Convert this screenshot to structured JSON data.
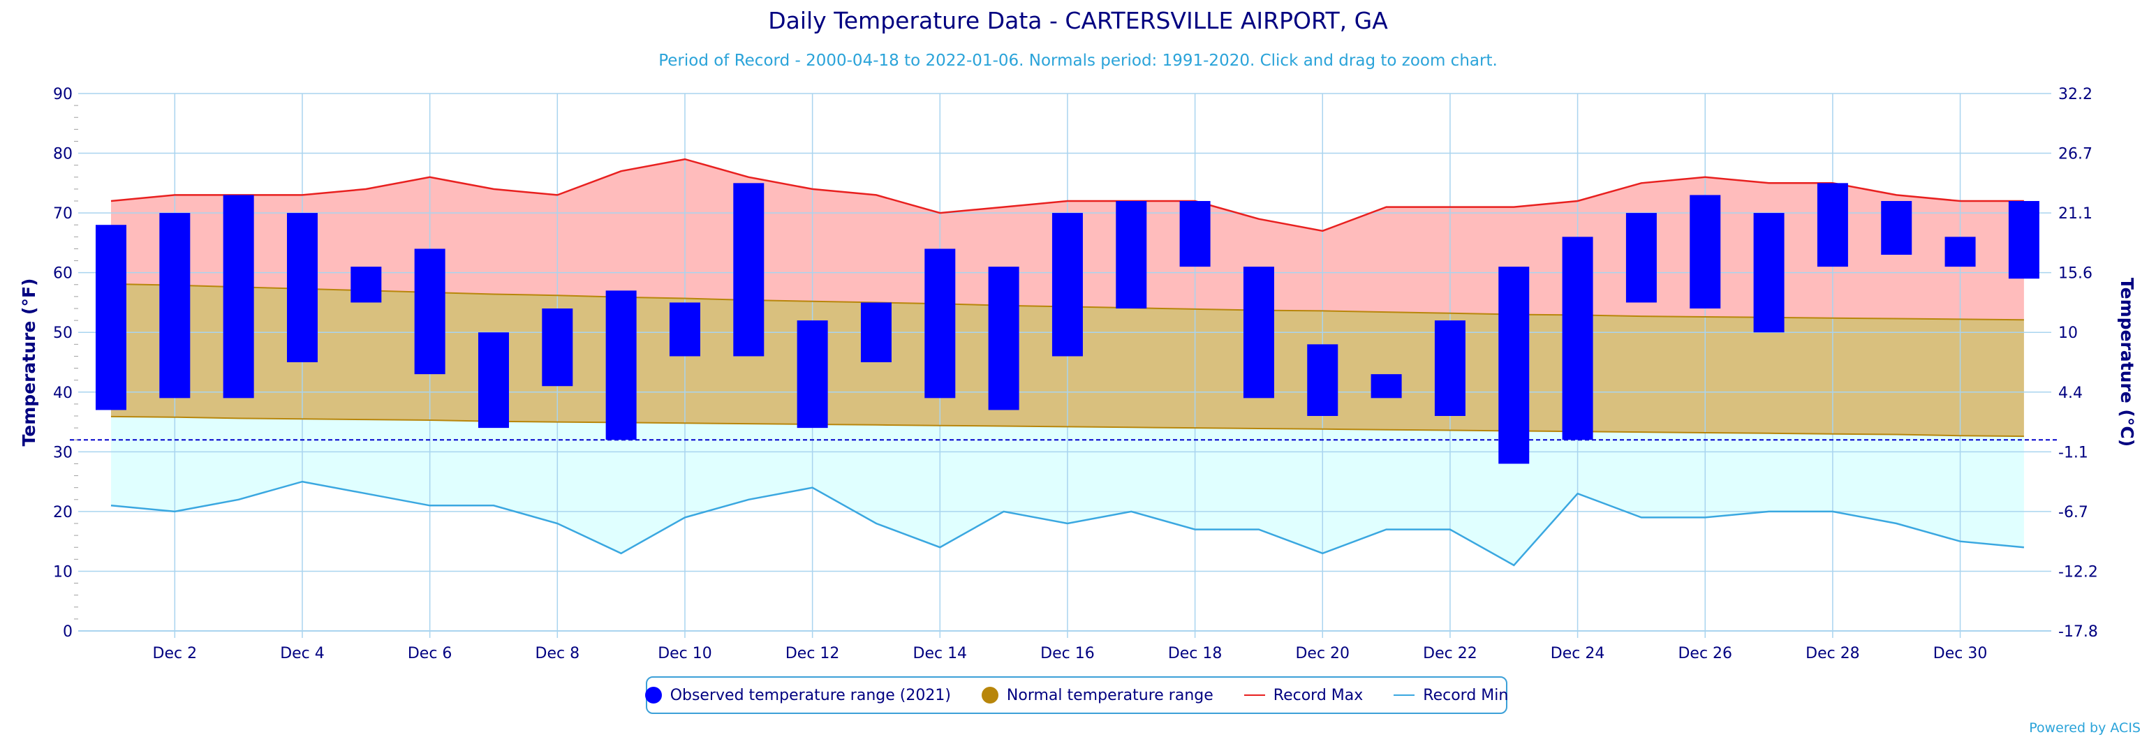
{
  "title": "Daily Temperature Data - CARTERSVILLE AIRPORT, GA",
  "subtitle": "Period of Record - 2000-04-18 to 2022-01-06. Normals period: 1991-2020. Click and drag to zoom chart.",
  "credit": "Powered by ACIS",
  "colors": {
    "observed": "#0000ff",
    "normal_fill": "#d9c07e",
    "normal_line": "#b8860b",
    "normal_legend": "#b8860b",
    "record_max_fill": "#ffbcbc",
    "record_max_line": "#e8201f",
    "record_min_fill": "#e0ffff",
    "record_min_line": "#3aa7e0",
    "freezing_line": "#0000cc",
    "grid": "#a9d4ef",
    "axis_text": "#000080"
  },
  "legend": {
    "observed_label": "Observed temperature range (2021)",
    "normal_label": "Normal temperature range",
    "record_max_label": "Record Max",
    "record_min_label": "Record Min"
  },
  "chart_data": {
    "type": "bar",
    "title": "Daily Temperature Data - CARTERSVILLE AIRPORT, GA",
    "subtitle": "Period of Record - 2000-04-18 to 2022-01-06. Normals period: 1991-2020. Click and drag to zoom chart.",
    "ylabel": "Temperature (°F)",
    "ylabel_right": "Temperature (°C)",
    "ylim": [
      0,
      90
    ],
    "grid": true,
    "legend_position": "bottom-center",
    "x": [
      1,
      2,
      3,
      4,
      5,
      6,
      7,
      8,
      9,
      10,
      11,
      12,
      13,
      14,
      15,
      16,
      17,
      18,
      19,
      20,
      21,
      22,
      23,
      24,
      25,
      26,
      27,
      28,
      29,
      30,
      31
    ],
    "x_tick_labels": [
      "Dec 2",
      "Dec 4",
      "Dec 6",
      "Dec 8",
      "Dec 10",
      "Dec 12",
      "Dec 14",
      "Dec 16",
      "Dec 18",
      "Dec 20",
      "Dec 22",
      "Dec 24",
      "Dec 26",
      "Dec 28",
      "Dec 30"
    ],
    "x_tick_days": [
      2,
      4,
      6,
      8,
      10,
      12,
      14,
      16,
      18,
      20,
      22,
      24,
      26,
      28,
      30
    ],
    "y_ticks_left": [
      "0",
      "10",
      "20",
      "30",
      "40",
      "50",
      "60",
      "70",
      "80",
      "90"
    ],
    "y_ticks_right": [
      "-17.8",
      "-12.2",
      "-6.7",
      "-1.1",
      "4.4",
      "10",
      "15.6",
      "21.1",
      "26.7",
      "32.2"
    ],
    "freezing_line": 32,
    "series": [
      {
        "name": "Observed temperature range (2021)",
        "low": [
          37,
          39,
          39,
          45,
          55,
          43,
          34,
          41,
          32,
          46,
          46,
          34,
          45,
          39,
          37,
          46,
          54,
          61,
          39,
          36,
          39,
          36,
          28,
          32,
          55,
          54,
          50,
          61,
          63,
          61,
          59
        ],
        "high": [
          68,
          70,
          73,
          70,
          61,
          64,
          50,
          54,
          57,
          55,
          75,
          52,
          55,
          64,
          61,
          70,
          72,
          72,
          61,
          48,
          43,
          52,
          61,
          66,
          70,
          73,
          70,
          75,
          72,
          66,
          72
        ]
      },
      {
        "name": "Normal temperature range",
        "low": [
          35.9,
          35.8,
          35.6,
          35.5,
          35.4,
          35.3,
          35.1,
          35.0,
          34.9,
          34.8,
          34.7,
          34.6,
          34.5,
          34.4,
          34.3,
          34.2,
          34.1,
          34.0,
          33.9,
          33.8,
          33.7,
          33.6,
          33.5,
          33.4,
          33.3,
          33.2,
          33.1,
          33.0,
          32.9,
          32.7,
          32.6
        ],
        "high": [
          58.1,
          57.9,
          57.6,
          57.3,
          57.0,
          56.7,
          56.4,
          56.2,
          55.9,
          55.7,
          55.4,
          55.2,
          55.0,
          54.8,
          54.5,
          54.3,
          54.1,
          53.9,
          53.7,
          53.6,
          53.4,
          53.2,
          53.0,
          52.9,
          52.7,
          52.6,
          52.5,
          52.4,
          52.3,
          52.2,
          52.1
        ]
      },
      {
        "name": "Record Max",
        "values": [
          72,
          73,
          73,
          73,
          74,
          76,
          74,
          73,
          77,
          79,
          76,
          74,
          73,
          70,
          71,
          72,
          72,
          72,
          69,
          67,
          71,
          71,
          71,
          72,
          75,
          76,
          75,
          75,
          73,
          72,
          72
        ]
      },
      {
        "name": "Record Min",
        "values": [
          21,
          20,
          22,
          25,
          23,
          21,
          21,
          18,
          13,
          19,
          22,
          24,
          18,
          14,
          20,
          18,
          20,
          17,
          17,
          13,
          17,
          17,
          11,
          23,
          19,
          19,
          20,
          20,
          18,
          15,
          14
        ]
      }
    ]
  }
}
